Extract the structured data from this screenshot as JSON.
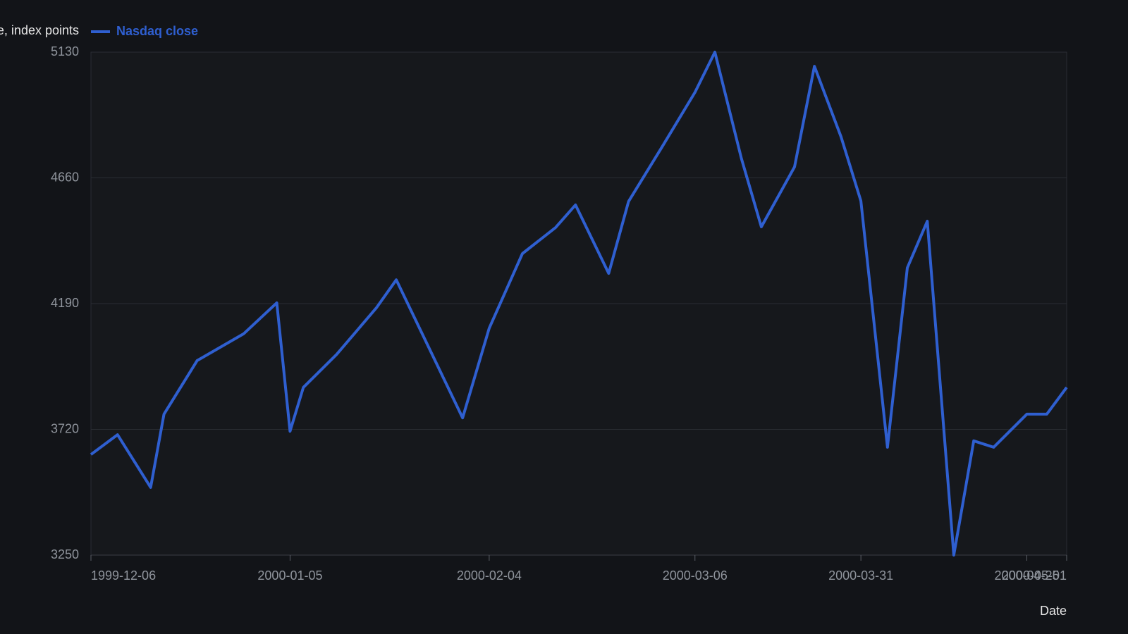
{
  "chart_data": {
    "type": "line",
    "y_label": "Close, index points",
    "x_label": "Date",
    "x": [
      "1999-12-06",
      "1999-12-10",
      "1999-12-15",
      "1999-12-17",
      "1999-12-22",
      "1999-12-29",
      "2000-01-03",
      "2000-01-05",
      "2000-01-07",
      "2000-01-12",
      "2000-01-18",
      "2000-01-21",
      "2000-01-31",
      "2000-02-04",
      "2000-02-09",
      "2000-02-14",
      "2000-02-17",
      "2000-02-22",
      "2000-02-25",
      "2000-03-01",
      "2000-03-06",
      "2000-03-09",
      "2000-03-13",
      "2000-03-16",
      "2000-03-21",
      "2000-03-24",
      "2000-03-28",
      "2000-03-31",
      "2000-04-04",
      "2000-04-07",
      "2000-04-10",
      "2000-04-14",
      "2000-04-17",
      "2000-04-20",
      "2000-04-25",
      "2000-04-28",
      "2000-05-01"
    ],
    "series": [
      {
        "name": "Nasdaq close",
        "color": "#2f5fd0",
        "values": [
          3626,
          3700,
          3503,
          3777,
          3977,
          4077,
          4193,
          3713,
          3877,
          4000,
          4174,
          4279,
          3763,
          4098,
          4377,
          4474,
          4559,
          4303,
          4572,
          4774,
          4980,
          5130,
          4732,
          4477,
          4701,
          5077,
          4814,
          4574,
          3653,
          4324,
          4498,
          3250,
          3677,
          3653,
          3777,
          3777,
          3877
        ]
      }
    ],
    "xlim": [
      "1999-12-06",
      "2000-05-01"
    ],
    "xticks": [
      "1999-12-06",
      "2000-01-05",
      "2000-02-04",
      "2000-03-06",
      "2000-03-31",
      "2000-04-25",
      "2000-05-01"
    ],
    "ylim": [
      3250,
      5130
    ],
    "yticks": [
      3250,
      3720,
      4190,
      4660,
      5130
    ],
    "grid": true
  }
}
